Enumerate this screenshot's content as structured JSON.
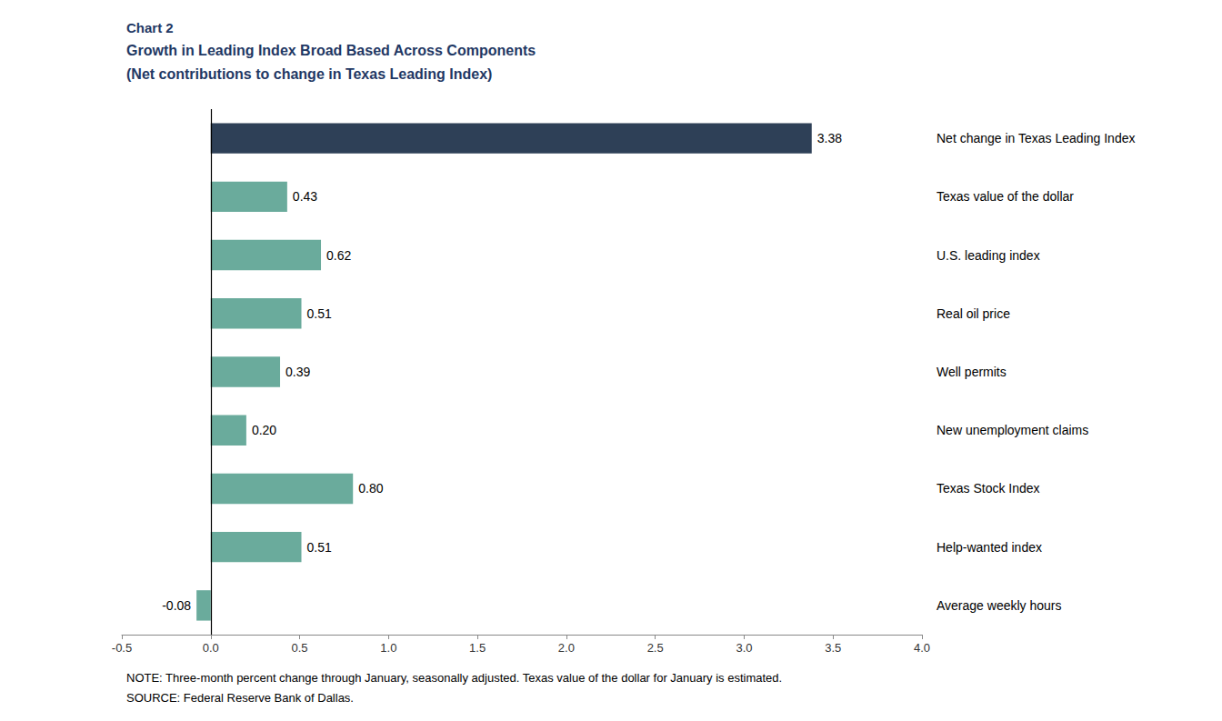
{
  "chart_data": {
    "type": "bar",
    "orientation": "horizontal",
    "title": "Chart 2",
    "subtitle": [
      "Growth in Leading Index Broad Based Across Components",
      "(Net contributions to change in Texas Leading Index)"
    ],
    "annotations": [
      "NOTE: Three-month percent change through January, seasonally adjusted. Texas value of the dollar for January is estimated.",
      "SOURCE: Federal Reserve Bank of Dallas."
    ],
    "categories": [
      "Net change in Texas Leading Index",
      "Texas value of the dollar",
      "U.S. leading index",
      "Real oil price",
      "Well permits",
      "New unemployment claims",
      "Texas Stock Index",
      "Help-wanted index",
      "Average weekly hours"
    ],
    "values": [
      3.38,
      0.43,
      0.62,
      0.51,
      0.39,
      0.2,
      0.8,
      0.51,
      -0.08
    ],
    "value_labels": [
      "3.38",
      "0.43",
      "0.62",
      "0.51",
      "0.39",
      "0.20",
      "0.80",
      "0.51",
      "-0.08"
    ],
    "colors": [
      "#2e4057",
      "#6aab9c",
      "#6aab9c",
      "#6aab9c",
      "#6aab9c",
      "#6aab9c",
      "#6aab9c",
      "#6aab9c",
      "#6aab9c"
    ],
    "title_color": "#1f3864",
    "xlim": [
      -0.5,
      4.0
    ],
    "xticks": [
      -0.5,
      {
        "value": 0.0,
        "label": "0.0"
      },
      0.5,
      {
        "value": 1.0,
        "label": "1.0"
      },
      1.5,
      {
        "value": 2.0,
        "label": "2.0"
      },
      2.5,
      {
        "value": 3.0,
        "label": "3.0"
      },
      3.5,
      {
        "value": 4.0,
        "label": "4.0"
      }
    ],
    "data_labels": true,
    "grid": false
  }
}
